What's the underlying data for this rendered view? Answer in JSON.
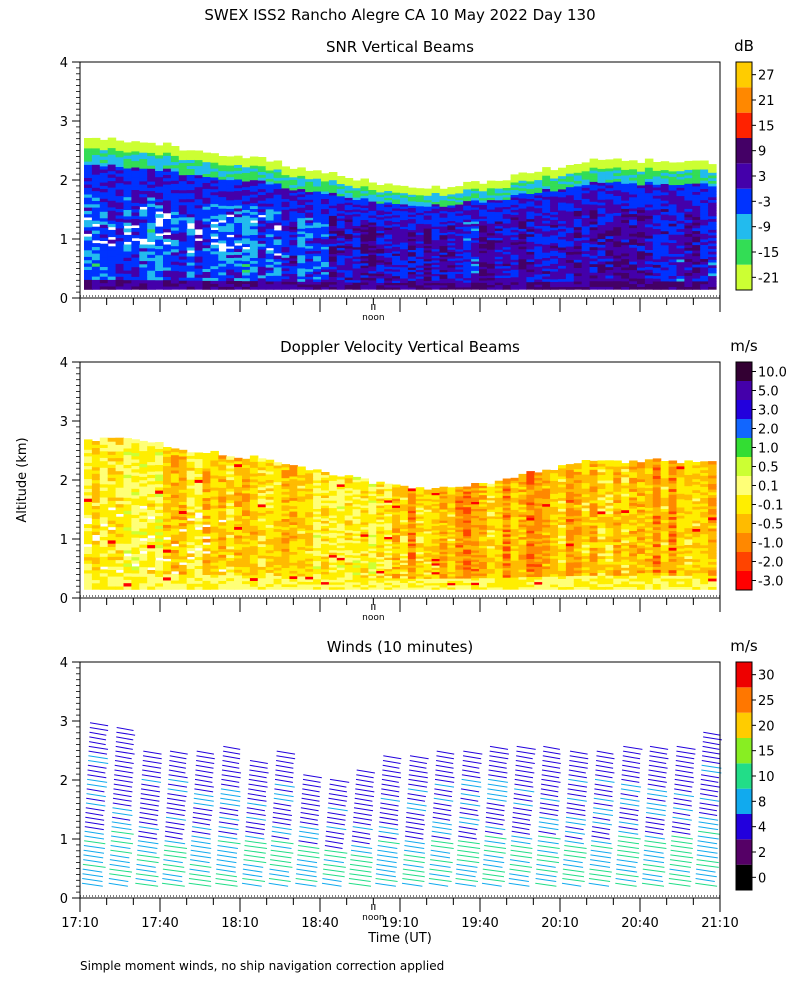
{
  "page": {
    "title": "SWEX ISS2 Rancho Alegre CA  10 May 2022 Day 130",
    "ylabel": "Altitude (km)",
    "xlabel": "Time (UT)",
    "footnote": "Simple moment winds, no ship navigation correction applied",
    "noon_label": "noon"
  },
  "chart_data": [
    {
      "type": "heatmap",
      "title": "SNR Vertical Beams",
      "units": "dB",
      "ylim": [
        0,
        4
      ],
      "ylabel": "Altitude (km)",
      "y_ticks": [
        "0",
        "1",
        "2",
        "3",
        "4"
      ],
      "colorbar_labels": [
        "-21",
        "-15",
        "-9",
        "-3",
        "3",
        "9",
        "15",
        "21",
        "27"
      ],
      "colors": [
        "#ccff33",
        "#33dd55",
        "#22bbee",
        "#0033ff",
        "#4400aa",
        "#440066",
        "#ff2200",
        "#ff8800",
        "#ffcc00"
      ],
      "top_km_profile": [
        2.7,
        2.7,
        2.65,
        2.6,
        2.5,
        2.45,
        2.4,
        2.35,
        2.2,
        2.15,
        2.05,
        1.95,
        1.9,
        1.85,
        1.9,
        1.95,
        2.0,
        2.15,
        2.2,
        2.3,
        2.35,
        2.3,
        2.35,
        2.3,
        2.3
      ]
    },
    {
      "type": "heatmap",
      "title": "Doppler Velocity Vertical Beams",
      "units": "m/s",
      "ylim": [
        0,
        4
      ],
      "ylabel": "Altitude (km)",
      "y_ticks": [
        "0",
        "1",
        "2",
        "3",
        "4"
      ],
      "colorbar_labels": [
        "-3.0",
        "-2.0",
        "-1.0",
        "-0.5",
        "-0.1",
        "0.1",
        "0.5",
        "1.0",
        "2.0",
        "3.0",
        "5.0",
        "10.0"
      ],
      "colors": [
        "#ff0000",
        "#ff4400",
        "#ff8800",
        "#ffbb00",
        "#ffee00",
        "#ffff77",
        "#ccff33",
        "#33dd33",
        "#1166ff",
        "#2200dd",
        "#4400aa",
        "#330033"
      ],
      "top_km_profile": [
        2.7,
        2.7,
        2.65,
        2.6,
        2.5,
        2.45,
        2.4,
        2.35,
        2.2,
        2.15,
        2.05,
        1.95,
        1.9,
        1.85,
        1.9,
        1.95,
        2.0,
        2.15,
        2.2,
        2.3,
        2.35,
        2.3,
        2.35,
        2.3,
        2.3
      ]
    },
    {
      "type": "scatter",
      "subtype": "wind-barbs",
      "title": "Winds (10 minutes)",
      "units": "m/s",
      "ylim": [
        0,
        4
      ],
      "ylabel": "Altitude (km)",
      "y_ticks": [
        "0",
        "1",
        "2",
        "3",
        "4"
      ],
      "x_ticks": [
        "17:10",
        "17:40",
        "18:10",
        "18:40",
        "19:10",
        "19:40",
        "20:10",
        "20:40",
        "21:10"
      ],
      "xlim_minutes_utc": [
        1030,
        1270
      ],
      "noon_minutes_utc": 1140,
      "profile_interval_min": 10,
      "colorbar_labels": [
        "0",
        "2",
        "4",
        "8",
        "10",
        "15",
        "20",
        "25",
        "30"
      ],
      "colors": [
        "#000000",
        "#550066",
        "#2200dd",
        "#11aaee",
        "#22dd88",
        "#88ee22",
        "#ffcc00",
        "#ff7700",
        "#ee0000"
      ],
      "profile_top_km": [
        3.0,
        2.9,
        2.5,
        2.5,
        2.5,
        2.6,
        2.3,
        2.5,
        2.1,
        2.0,
        2.2,
        2.4,
        2.4,
        2.5,
        2.5,
        2.6,
        2.6,
        2.6,
        2.5,
        2.5,
        2.6,
        2.6,
        2.6,
        2.8
      ]
    }
  ]
}
